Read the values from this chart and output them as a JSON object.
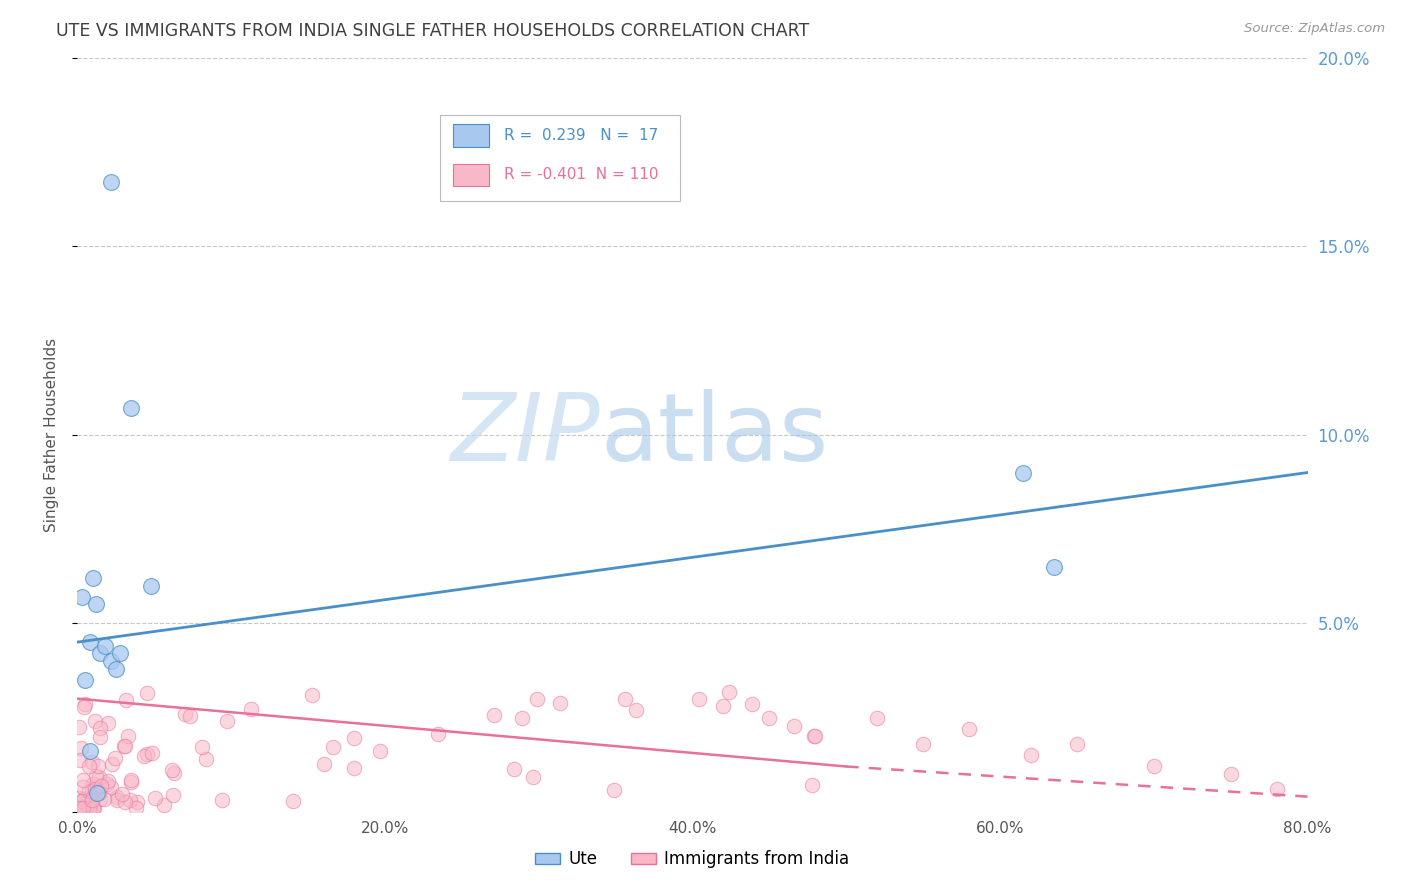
{
  "title": "UTE VS IMMIGRANTS FROM INDIA SINGLE FATHER HOUSEHOLDS CORRELATION CHART",
  "source": "Source: ZipAtlas.com",
  "ylabel": "Single Father Households",
  "xlabel": "",
  "xlim": [
    0,
    0.8
  ],
  "ylim": [
    0,
    0.2
  ],
  "xticks": [
    0.0,
    0.2,
    0.4,
    0.6,
    0.8
  ],
  "xtick_labels": [
    "0.0%",
    "20.0%",
    "40.0%",
    "60.0%",
    "80.0%"
  ],
  "yticks": [
    0.0,
    0.05,
    0.1,
    0.15,
    0.2
  ],
  "ytick_labels_right": [
    "",
    "5.0%",
    "10.0%",
    "15.0%",
    "20.0%"
  ],
  "ute_R": 0.239,
  "ute_N": 17,
  "india_R": -0.401,
  "india_N": 110,
  "ute_color": "#A8C8F0",
  "india_color": "#F8B8C8",
  "ute_line_color": "#4A90C8",
  "india_line_color": "#E8709A",
  "background_color": "#FFFFFF",
  "grid_color": "#C8C8C8",
  "title_color": "#404040",
  "right_axis_color": "#5B9BD5",
  "legend_text_color_blue": "#4A90C8",
  "legend_text_color_pink": "#E8709A",
  "watermark_color": "#D0E4F4",
  "ute_points_x": [
    0.022,
    0.035,
    0.048,
    0.003,
    0.008,
    0.012,
    0.015,
    0.018,
    0.022,
    0.025,
    0.028,
    0.005,
    0.01,
    0.615,
    0.635,
    0.008,
    0.013
  ],
  "ute_points_y": [
    0.167,
    0.107,
    0.06,
    0.057,
    0.045,
    0.055,
    0.042,
    0.044,
    0.04,
    0.038,
    0.042,
    0.035,
    0.062,
    0.09,
    0.065,
    0.016,
    0.005
  ],
  "india_trend_solid_x1": 0.0,
  "india_trend_solid_x2": 0.5,
  "india_trend_solid_y1": 0.03,
  "india_trend_solid_y2": 0.012,
  "india_trend_dash_x1": 0.5,
  "india_trend_dash_x2": 0.8,
  "india_trend_dash_y1": 0.012,
  "india_trend_dash_y2": 0.004,
  "ute_trend_x1": 0.0,
  "ute_trend_x2": 0.8,
  "ute_trend_y1": 0.045,
  "ute_trend_y2": 0.09
}
